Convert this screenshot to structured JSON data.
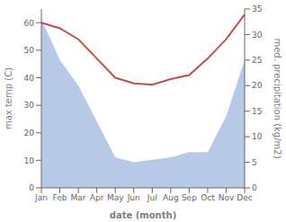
{
  "chart_data": {
    "type": "line",
    "xlabel": "date (month)",
    "ylabel": "max temp (C)",
    "y2label": "med. precipitation (kg/m2)",
    "categories": [
      "Jan",
      "Feb",
      "Mar",
      "Apr",
      "May",
      "Jun",
      "Jul",
      "Aug",
      "Sep",
      "Oct",
      "Nov",
      "Dec"
    ],
    "series": [
      {
        "type": "area",
        "axis": "y2",
        "color": "#b8c9e8",
        "values": [
          33,
          25,
          20,
          13,
          6,
          5,
          5.5,
          6,
          7,
          7,
          14,
          25
        ]
      },
      {
        "type": "line",
        "color": "#c0504d",
        "values": [
          60,
          58,
          54,
          47,
          40,
          38,
          37.5,
          39.5,
          41,
          47,
          54,
          63
        ]
      }
    ],
    "ylim": [
      0,
      65
    ],
    "yticks": [
      0,
      10,
      20,
      30,
      40,
      50,
      60
    ],
    "y2lim": [
      0,
      35
    ],
    "y2ticks": [
      0,
      5,
      10,
      15,
      20,
      25,
      30,
      35
    ],
    "grid": false
  }
}
